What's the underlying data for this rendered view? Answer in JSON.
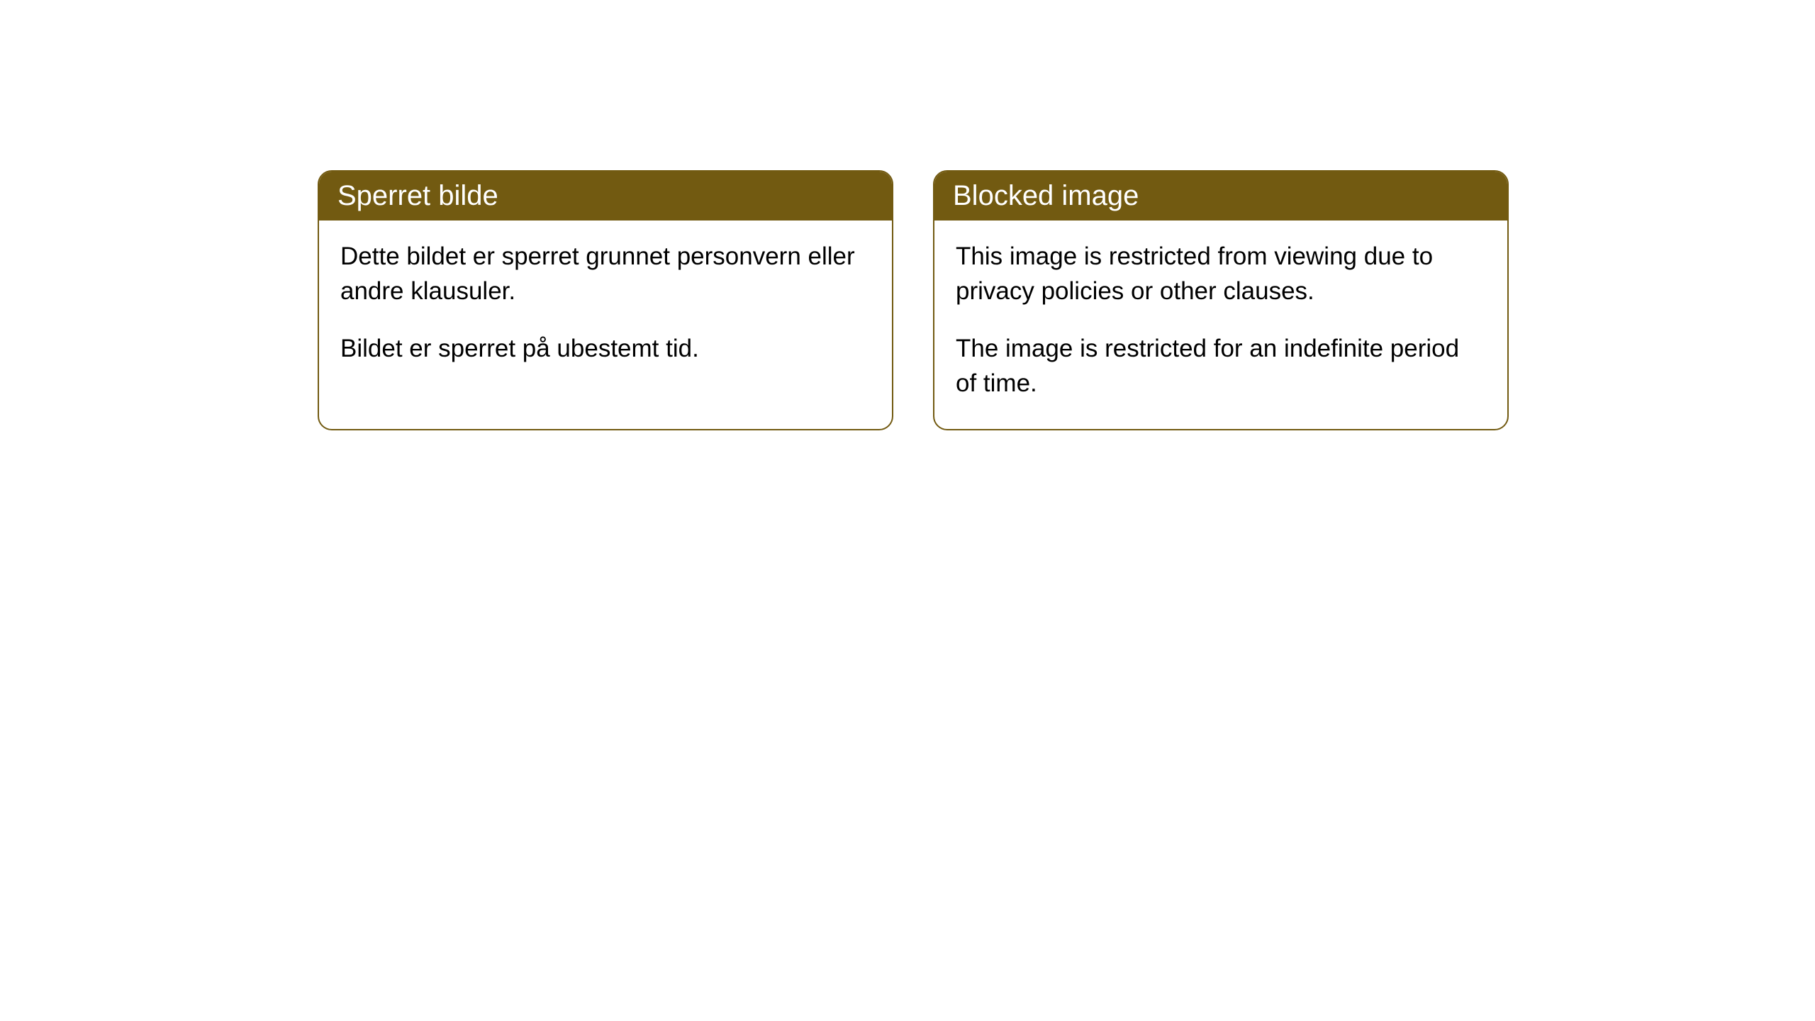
{
  "cards": [
    {
      "title": "Sperret bilde",
      "paragraph1": "Dette bildet er sperret grunnet personvern eller andre klausuler.",
      "paragraph2": "Bildet er sperret på ubestemt tid."
    },
    {
      "title": "Blocked image",
      "paragraph1": "This image is restricted from viewing due to privacy policies or other clauses.",
      "paragraph2": "The image is restricted for an indefinite period of time."
    }
  ],
  "styling": {
    "header_background": "#725a11",
    "header_text_color": "#ffffff",
    "border_color": "#725a11",
    "body_background": "#ffffff",
    "body_text_color": "#000000",
    "border_radius": 20,
    "title_fontsize": 40,
    "body_fontsize": 35
  }
}
